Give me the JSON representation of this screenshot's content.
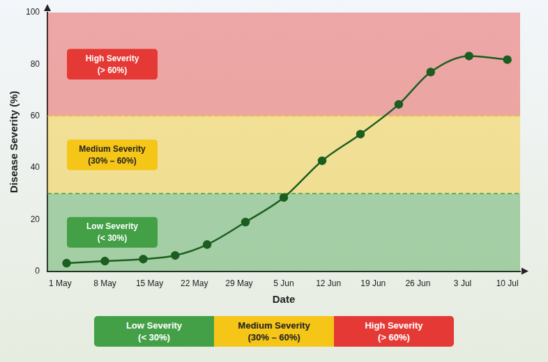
{
  "chart_data": {
    "type": "line",
    "x_label": "Date",
    "y_label": "Disease Severity (%)",
    "x": [
      1,
      7,
      13,
      18,
      23,
      29,
      35,
      41,
      47,
      53,
      58,
      64,
      70
    ],
    "values": [
      3.1,
      3.9,
      4.7,
      6.1,
      10.3,
      19,
      28.5,
      42.7,
      53,
      64.5,
      77,
      83.2,
      81.8
    ],
    "color": "#1b5e20",
    "marker": "circle",
    "xlim": [
      -2,
      72
    ],
    "xticks": [
      {
        "value": 0,
        "label": "1 May"
      },
      {
        "value": 7,
        "label": "8 May"
      },
      {
        "value": 14,
        "label": "15 May"
      },
      {
        "value": 21,
        "label": "22 May"
      },
      {
        "value": 28,
        "label": "29 May"
      },
      {
        "value": 35,
        "label": "5 Jun"
      },
      {
        "value": 42,
        "label": "12 Jun"
      },
      {
        "value": 49,
        "label": "19 Jun"
      },
      {
        "value": 56,
        "label": "26 Jun"
      },
      {
        "value": 63,
        "label": "3 Jul"
      },
      {
        "value": 70,
        "label": "10 Jul"
      }
    ],
    "ylim": [
      0,
      100
    ],
    "yticks": [
      0,
      20,
      40,
      60,
      80,
      100
    ],
    "grid": false,
    "legend": "bottom",
    "bands": [
      {
        "label": "Low Severity",
        "sublabel": "(< 30%)",
        "from": 0,
        "to": 30,
        "color": "#43a047"
      },
      {
        "label": "Medium Severity",
        "sublabel": "(30% – 60%)",
        "from": 30,
        "to": 60,
        "color": "#f5c518"
      },
      {
        "label": "High Severity",
        "sublabel": "(> 60%)",
        "from": 60,
        "to": 100,
        "color": "#e53935"
      }
    ]
  }
}
